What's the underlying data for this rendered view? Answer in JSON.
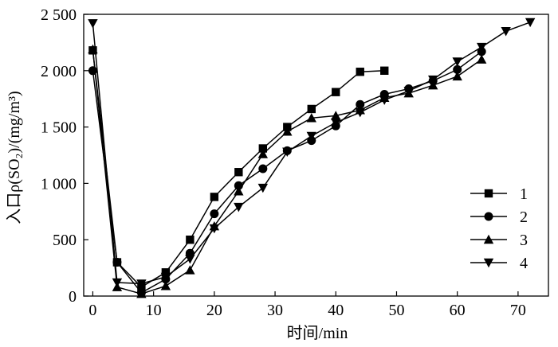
{
  "chart_data": {
    "type": "line",
    "xlabel": "时间/min",
    "ylabel": "入口ρ(SO₂)/(mg/m³)",
    "xlim": [
      -1.5,
      75
    ],
    "ylim": [
      0,
      2500
    ],
    "x_ticks": [
      0,
      10,
      20,
      30,
      40,
      50,
      60,
      70
    ],
    "x_tick_labels": [
      "0",
      "10",
      "20",
      "30",
      "40",
      "50",
      "60",
      "70"
    ],
    "y_ticks": [
      0,
      500,
      1000,
      1500,
      2000,
      2500
    ],
    "y_tick_labels": [
      "0",
      "500",
      "1 000",
      "1 500",
      "2 000",
      "2 500"
    ],
    "grid": false,
    "legend_position": "right",
    "series": [
      {
        "name": "1",
        "marker": "square",
        "x": [
          0,
          4,
          8,
          12,
          16,
          20,
          24,
          28,
          32,
          36,
          40,
          44,
          48
        ],
        "y": [
          2180,
          300,
          80,
          210,
          500,
          880,
          1100,
          1310,
          1500,
          1660,
          1810,
          1990,
          2000
        ]
      },
      {
        "name": "2",
        "marker": "circle",
        "x": [
          0,
          4,
          8,
          12,
          16,
          20,
          24,
          28,
          32,
          36,
          40,
          44,
          48,
          52,
          56,
          60,
          64
        ],
        "y": [
          2000,
          300,
          30,
          150,
          380,
          730,
          980,
          1130,
          1290,
          1380,
          1510,
          1700,
          1790,
          1840,
          1910,
          2010,
          2170
        ]
      },
      {
        "name": "3",
        "marker": "triangle-up",
        "x": [
          0,
          4,
          8,
          12,
          16,
          20,
          24,
          28,
          32,
          36,
          40,
          44,
          48,
          52,
          56,
          60,
          64
        ],
        "y": [
          2190,
          80,
          20,
          90,
          230,
          620,
          930,
          1260,
          1460,
          1580,
          1600,
          1650,
          1760,
          1800,
          1870,
          1950,
          2100
        ]
      },
      {
        "name": "4",
        "marker": "triangle-down",
        "x": [
          0,
          4,
          8,
          12,
          16,
          20,
          24,
          28,
          32,
          36,
          40,
          44,
          48,
          52,
          56,
          60,
          64,
          68,
          72
        ],
        "y": [
          2420,
          120,
          110,
          170,
          330,
          600,
          790,
          960,
          1280,
          1420,
          1540,
          1630,
          1740,
          1820,
          1920,
          2080,
          2210,
          2350,
          2430
        ]
      }
    ]
  }
}
